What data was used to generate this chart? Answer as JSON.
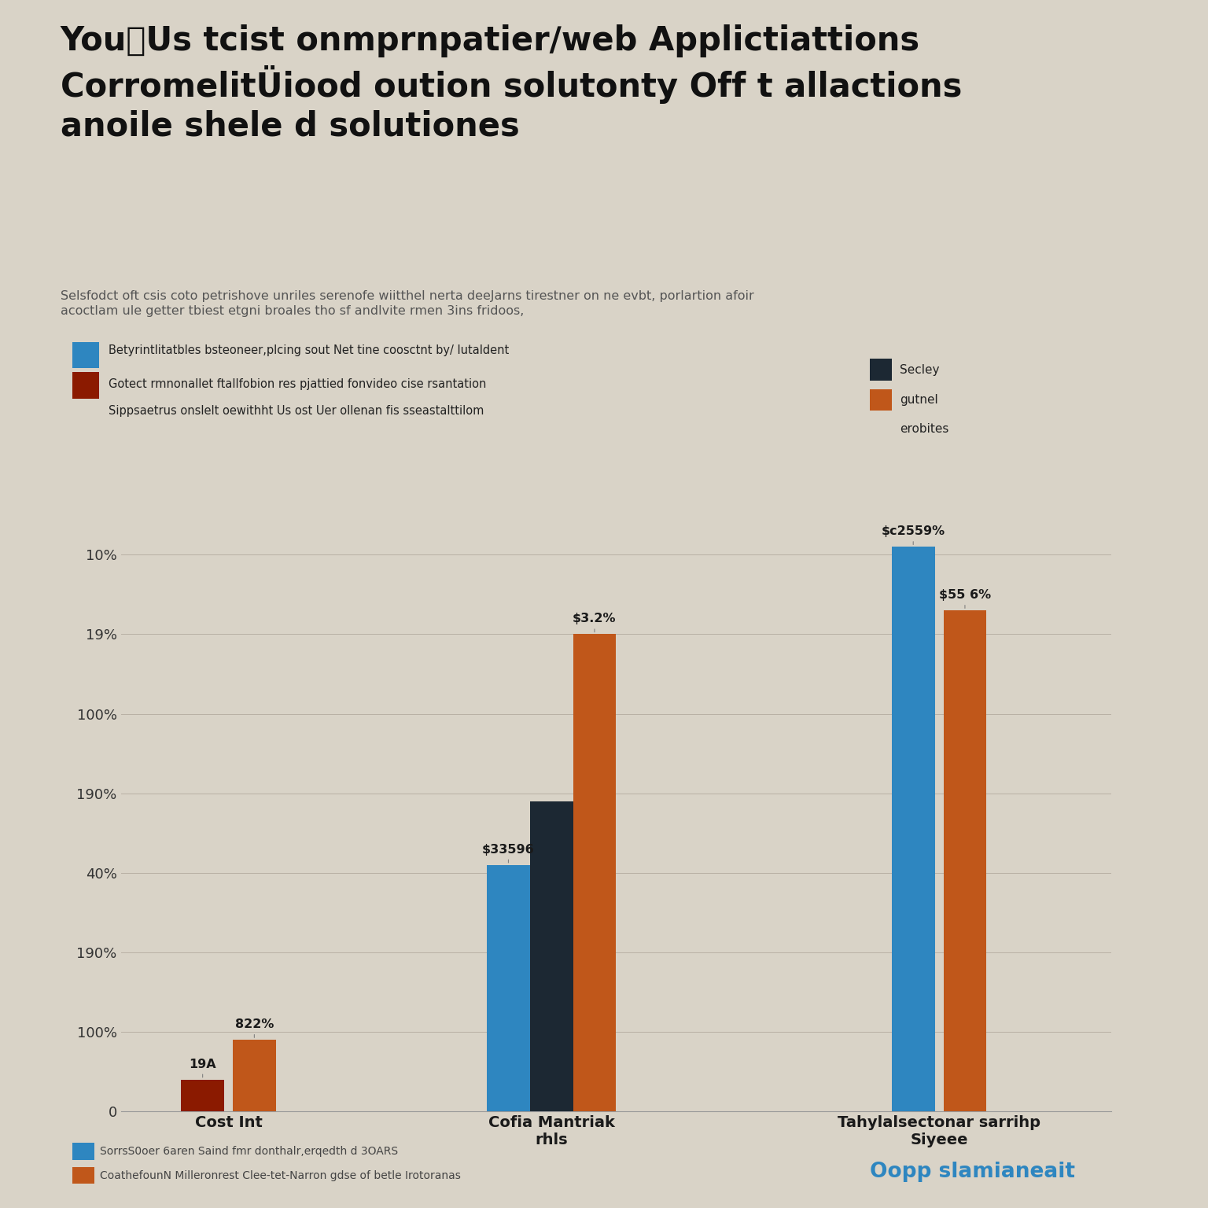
{
  "title_line1": "YouUs tcist onmprnpatier∕web Applictiattions",
  "title_line2": "CorromelitÜiood oution solutonty Off t allactions",
  "title_line3": "anoile shele d solutiones",
  "subtitle": "Selsfodct oft csis coto petrishove unriles serenofe wiitthel nerta deeJarns tirestner on ne evbt, porlartion afoir\nacoctlam ule getter tbiest etgni broales tho sf andlvite rmen 3ins fridoos,",
  "legend_blue": "Betyrintlitatbles bsteoneer,plcing sout Net tine coosctnt by/ lutaldent",
  "legend_red": "Gotect rmnonallet ftallfobion res pjattied fonvideo cise rsantation",
  "legend_orange_extra": "Sippsaetrus onslelt oewithht Us ost Uer ollenan fis sseastalttilom",
  "side_legend_dark": "Secley",
  "side_legend_orange": "gutnel",
  "side_legend_extra": "erobites",
  "categories": [
    "Cost Int",
    "Cofia Mantriak\nrhls",
    "Tahylalsectonar sarrihp\nSiyeee"
  ],
  "bar_heights": {
    "g1_darkred": 8,
    "g1_orange": 18,
    "g2_blue": 62,
    "g2_dark": 78,
    "g2_orange": 120,
    "g3_blue": 142,
    "g3_orange": 126
  },
  "annotations": {
    "g1_darkred": "19A",
    "g1_orange": "822%",
    "g2_blue": "$33596",
    "g2_orange": "$3.2%",
    "g3_blue": "$c2559%",
    "g3_orange": "$55 6%"
  },
  "ytick_vals": [
    0,
    20,
    40,
    60,
    80,
    100,
    120,
    140
  ],
  "ytick_labels": [
    "0",
    "100%",
    "190%",
    "40%",
    "190%",
    "100%",
    "19%",
    "10%"
  ],
  "background_color": "#d9d3c7",
  "bar_colors": {
    "blue": "#2e86c0",
    "dark": "#1c2833",
    "orange": "#c0571a",
    "dark_red": "#8b1a00"
  },
  "footer_blue": "SorrsS0oer 6aren Saind fmr donthalr,erqedth d 3OARS",
  "footer_orange": "CoathefounN Milleronrest Clee-tet-Narron gdse of betle Irotoranas",
  "brand": "Oopp slamianeait"
}
